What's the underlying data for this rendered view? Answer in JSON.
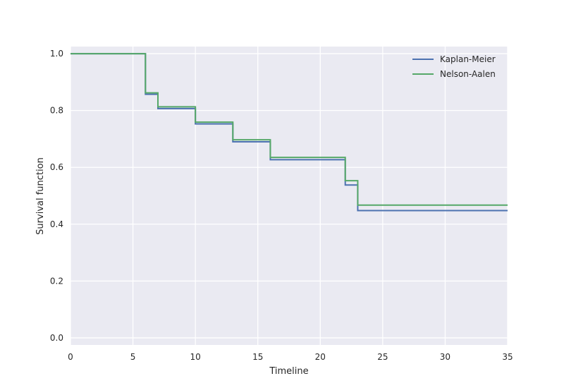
{
  "chart_data": {
    "type": "line",
    "step": "post",
    "xlabel": "Timeline",
    "ylabel": "Survival function",
    "xlim": [
      0,
      35
    ],
    "ylim": [
      -0.025,
      1.025
    ],
    "xticks": [
      "0",
      "5",
      "10",
      "15",
      "20",
      "25",
      "30",
      "35"
    ],
    "yticks": [
      "0.0",
      "0.2",
      "0.4",
      "0.6",
      "0.8",
      "1.0"
    ],
    "grid": true,
    "legend_position": "top-right",
    "background_color": "#eaeaf2",
    "grid_color": "#ffffff",
    "series": [
      {
        "name": "Kaplan-Meier",
        "color": "#4c72b0",
        "x": [
          0,
          6,
          7,
          10,
          13,
          16,
          22,
          23,
          35
        ],
        "y": [
          1.0,
          0.857,
          0.807,
          0.753,
          0.69,
          0.627,
          0.538,
          0.448,
          0.448
        ]
      },
      {
        "name": "Nelson-Aalen",
        "color": "#55a868",
        "x": [
          0,
          6,
          7,
          10,
          13,
          16,
          22,
          23,
          35
        ],
        "y": [
          1.0,
          0.862,
          0.813,
          0.759,
          0.697,
          0.635,
          0.553,
          0.467,
          0.467
        ]
      }
    ]
  }
}
